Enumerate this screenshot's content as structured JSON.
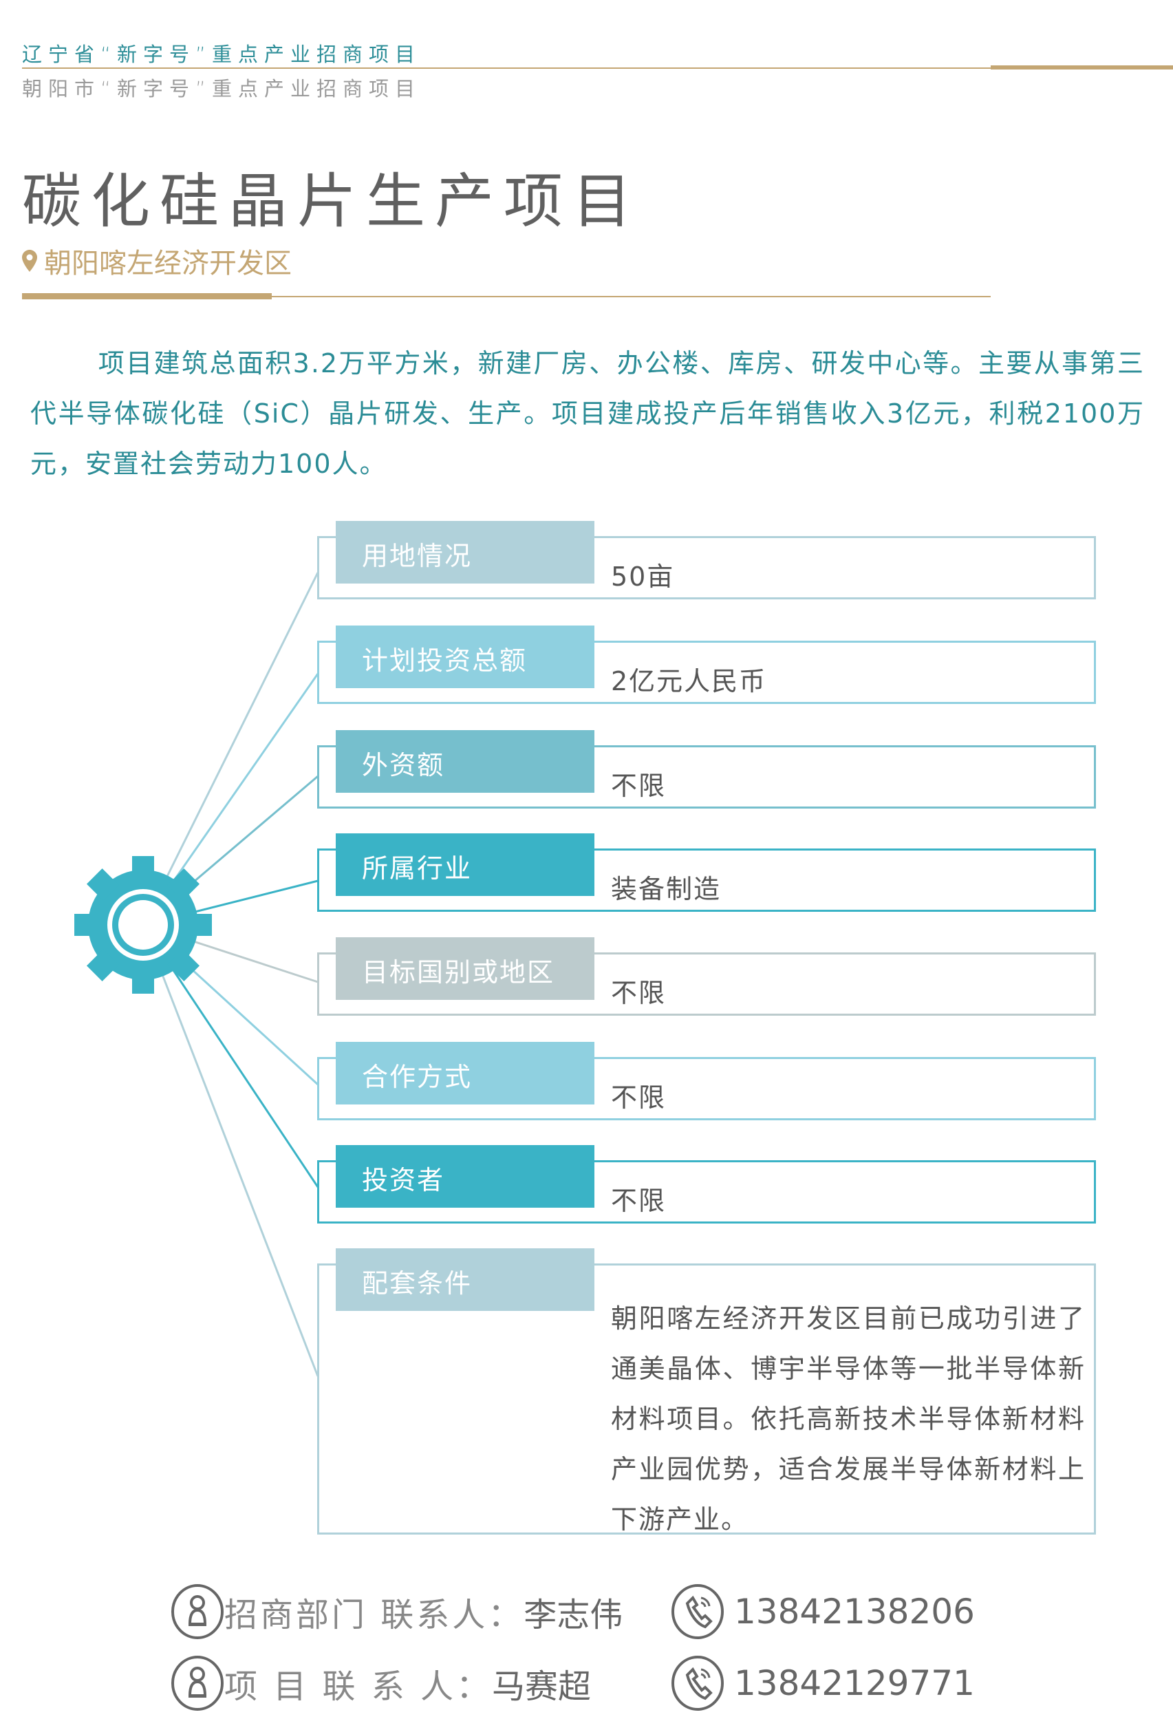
{
  "header": {
    "province_line": "辽宁省“新字号”重点产业招商项目",
    "city_line": "朝阳市“新字号”重点产业招商项目"
  },
  "title": "碳化硅晶片生产项目",
  "location": {
    "icon": "map-pin-icon",
    "text": "朝阳喀左经济开发区"
  },
  "intro": "项目建筑总面积3.2万平方米，新建厂房、办公楼、库房、研发中心等。主要从事第三代半导体碳化硅（SiC）晶片研发、生产。项目建成投产后年销售收入3亿元，利税2100万元，安置社会劳动力100人。",
  "colors": {
    "gold": "#c4a673",
    "teal_text": "#2b8c96",
    "gear": "#3ab3c6"
  },
  "rows": [
    {
      "label": "用地情况",
      "value": "50亩",
      "color": "#b0d1da"
    },
    {
      "label": "计划投资总额",
      "value": "2亿元人民币",
      "color": "#8fd0e0"
    },
    {
      "label": "外资额",
      "value": "不限",
      "color": "#76bfcd"
    },
    {
      "label": "所属行业",
      "value": "装备制造",
      "color": "#3ab3c6"
    },
    {
      "label": "目标国别或地区",
      "value": "不限",
      "color": "#bccbcd"
    },
    {
      "label": "合作方式",
      "value": "不限",
      "color": "#8fd0e0"
    },
    {
      "label": "投资者",
      "value": "不限",
      "color": "#3ab3c6"
    },
    {
      "label": "配套条件",
      "value": "朝阳喀左经济开发区目前已成功引进了通美晶体、博宇半导体等一批半导体新材料项目。依托高新技术半导体新材料产业园优势，适合发展半导体新材料上下游产业。",
      "color": "#b0d1da"
    }
  ],
  "contacts": [
    {
      "label": "招商部门 联系人：",
      "name": "李志伟",
      "phone": "13842138206"
    },
    {
      "label": "项 目 联 系 人：",
      "name": "马赛超",
      "phone": "13842129771"
    }
  ]
}
